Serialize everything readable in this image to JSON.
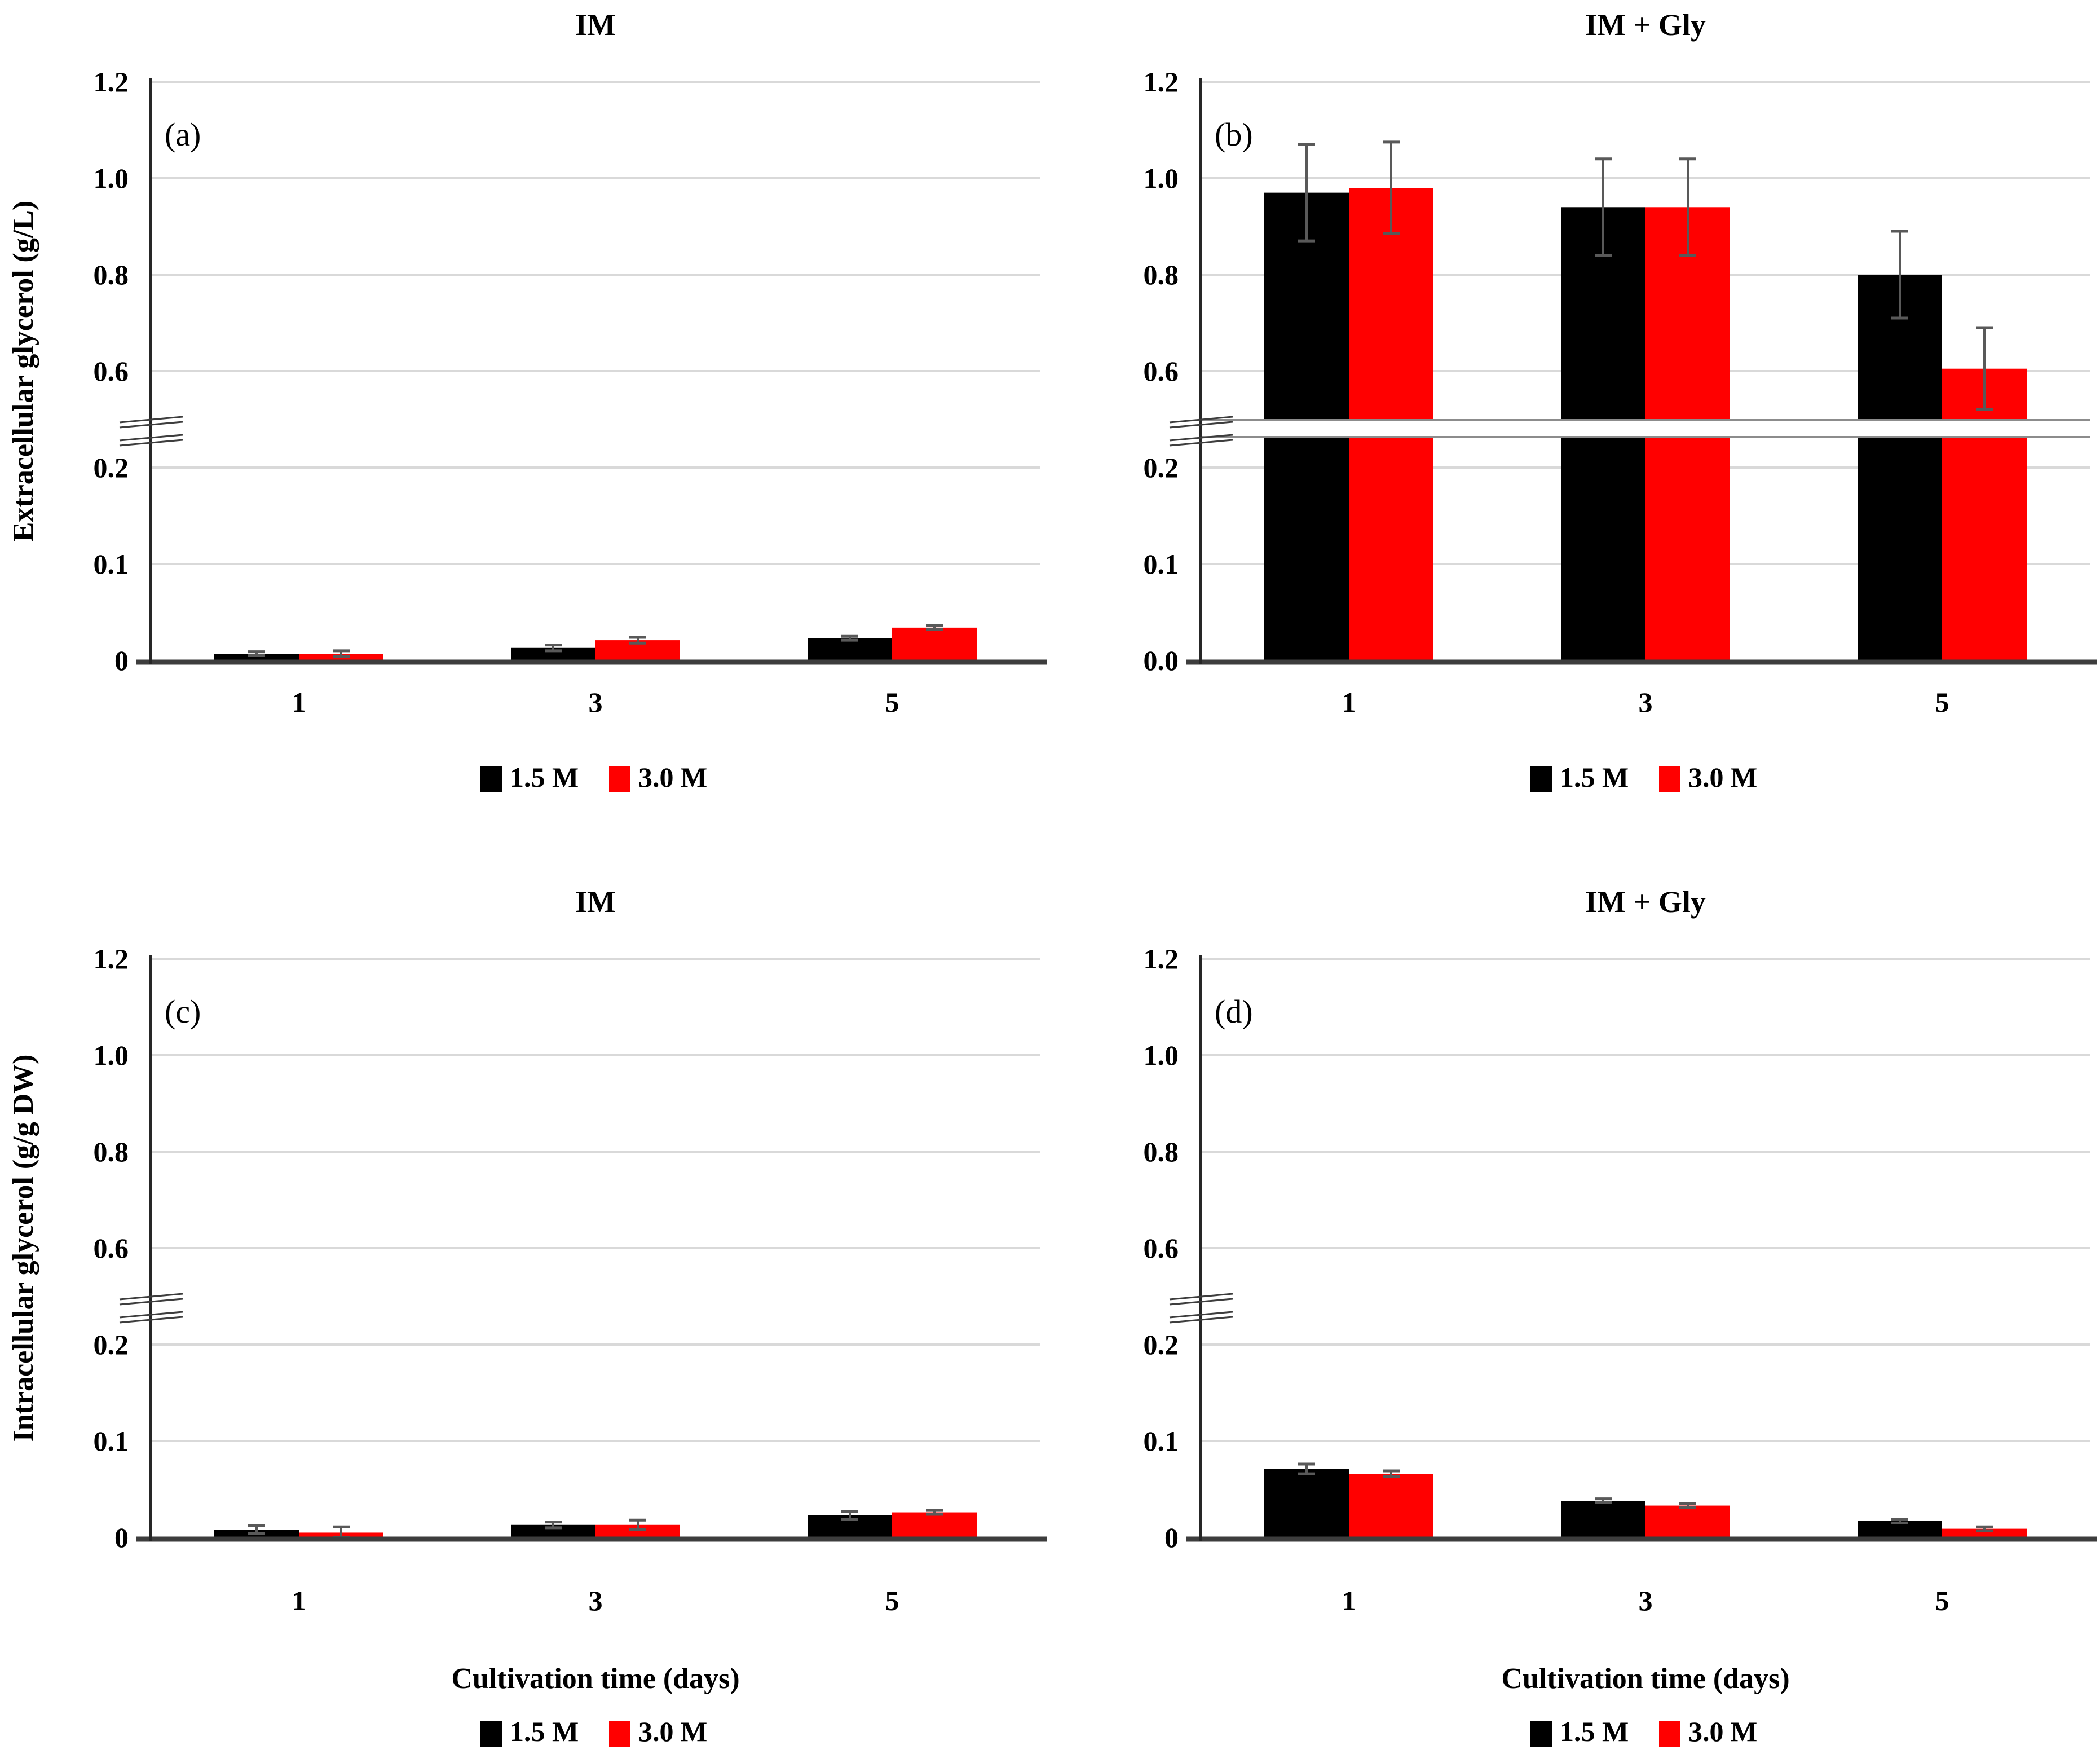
{
  "figure": {
    "background": "#ffffff",
    "colors": {
      "grid": "#d9d9d9",
      "axis": "#262626",
      "baseline": "#3d3d3d",
      "error": "#595959",
      "text": "#000000",
      "band_line": "#8c8c8c",
      "band_fill": "#ffffff"
    },
    "legend": {
      "items": [
        {
          "label": "1.5 M",
          "color": "#000000"
        },
        {
          "label": "3.0 M",
          "color": "#ff0000"
        }
      ]
    }
  },
  "chart_data": [
    {
      "panel": "(a)",
      "type": "bar",
      "title": "IM",
      "ylabel": "Extracellular glycerol (g/L)",
      "xlabel": null,
      "categories": [
        "1",
        "3",
        "5"
      ],
      "series": [
        {
          "name": "1.5 M",
          "color": "#000000",
          "values": [
            0.007,
            0.013,
            0.023
          ],
          "errors": [
            0.002,
            0.003,
            0.002
          ]
        },
        {
          "name": "3.0 M",
          "color": "#ff0000",
          "values": [
            0.007,
            0.021,
            0.034
          ],
          "errors": [
            0.003,
            0.003,
            0.002
          ]
        }
      ],
      "y_ticks_upper": [
        "1.2",
        "1.0",
        "0.8",
        "0.6"
      ],
      "y_ticks_lower": [
        "0.2",
        "0.1"
      ],
      "zero_label": "0",
      "ylim": [
        0,
        1.2
      ],
      "axis_break": {
        "lower_max": 0.23,
        "upper_min": 0.55
      },
      "break_band_across_plot": false,
      "grid": true,
      "legend_position": "bottom"
    },
    {
      "panel": "(b)",
      "type": "bar",
      "title": "IM + Gly",
      "ylabel": null,
      "xlabel": null,
      "categories": [
        "1",
        "3",
        "5"
      ],
      "series": [
        {
          "name": "1.5 M",
          "color": "#000000",
          "values": [
            0.97,
            0.94,
            0.8
          ],
          "errors": [
            0.1,
            0.1,
            0.09
          ]
        },
        {
          "name": "3.0 M",
          "color": "#ff0000",
          "values": [
            0.98,
            0.94,
            0.605
          ],
          "errors": [
            0.095,
            0.1,
            0.085
          ]
        }
      ],
      "y_ticks_upper": [
        "1.2",
        "1.0",
        "0.8",
        "0.6"
      ],
      "y_ticks_lower": [
        "0.2",
        "0.1"
      ],
      "zero_label": "0.0",
      "ylim": [
        0,
        1.2
      ],
      "axis_break": {
        "lower_max": 0.23,
        "upper_min": 0.55
      },
      "break_band_across_plot": true,
      "grid": true,
      "legend_position": "bottom"
    },
    {
      "panel": "(c)",
      "type": "bar",
      "title": "IM",
      "ylabel": "Intracellular glycerol (g/g DW)",
      "xlabel": "Cultivation time (days)",
      "categories": [
        "1",
        "3",
        "5"
      ],
      "series": [
        {
          "name": "1.5 M",
          "color": "#000000",
          "values": [
            0.008,
            0.013,
            0.023
          ],
          "errors": [
            0.004,
            0.003,
            0.004
          ]
        },
        {
          "name": "3.0 M",
          "color": "#ff0000",
          "values": [
            0.005,
            0.013,
            0.026
          ],
          "errors": [
            0.006,
            0.005,
            0.002
          ]
        }
      ],
      "y_ticks_upper": [
        "1.2",
        "1.0",
        "0.8",
        "0.6"
      ],
      "y_ticks_lower": [
        "0.2",
        "0.1"
      ],
      "zero_label": "0",
      "ylim": [
        0,
        1.2
      ],
      "axis_break": {
        "lower_max": 0.23,
        "upper_min": 0.55
      },
      "break_band_across_plot": false,
      "grid": true,
      "legend_position": "bottom"
    },
    {
      "panel": "(d)",
      "type": "bar",
      "title": "IM + Gly",
      "ylabel": null,
      "xlabel": "Cultivation time (days)",
      "categories": [
        "1",
        "3",
        "5"
      ],
      "series": [
        {
          "name": "1.5 M",
          "color": "#000000",
          "values": [
            0.071,
            0.038,
            0.017
          ],
          "errors": [
            0.005,
            0.002,
            0.002
          ]
        },
        {
          "name": "3.0 M",
          "color": "#ff0000",
          "values": [
            0.066,
            0.033,
            0.009
          ],
          "errors": [
            0.003,
            0.002,
            0.002
          ]
        }
      ],
      "y_ticks_upper": [
        "1.2",
        "1.0",
        "0.8",
        "0.6"
      ],
      "y_ticks_lower": [
        "0.2",
        "0.1"
      ],
      "zero_label": "0",
      "ylim": [
        0,
        1.2
      ],
      "axis_break": {
        "lower_max": 0.23,
        "upper_min": 0.55
      },
      "break_band_across_plot": false,
      "grid": true,
      "legend_position": "bottom"
    }
  ]
}
